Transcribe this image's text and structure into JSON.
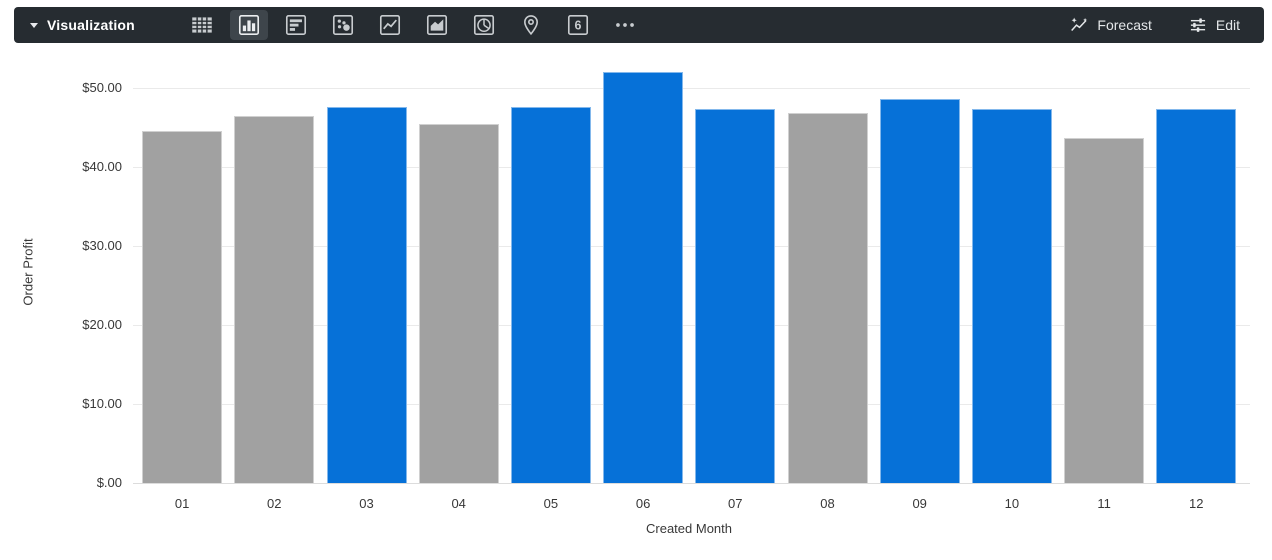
{
  "toolbar": {
    "title": "Visualization",
    "forecast_label": "Forecast",
    "edit_label": "Edit",
    "chart_types": [
      {
        "name": "table",
        "selected": false
      },
      {
        "name": "column",
        "selected": true
      },
      {
        "name": "bar",
        "selected": false
      },
      {
        "name": "scatter",
        "selected": false
      },
      {
        "name": "line",
        "selected": false
      },
      {
        "name": "area",
        "selected": false
      },
      {
        "name": "pie",
        "selected": false
      },
      {
        "name": "map",
        "selected": false
      },
      {
        "name": "single-value",
        "selected": false,
        "glyph": "6"
      },
      {
        "name": "more",
        "selected": false
      }
    ]
  },
  "chart_data": {
    "type": "bar",
    "title": "",
    "xlabel": "Created Month",
    "ylabel": "Order Profit",
    "categories": [
      "01",
      "02",
      "03",
      "04",
      "05",
      "06",
      "07",
      "08",
      "09",
      "10",
      "11",
      "12"
    ],
    "values": [
      44.5,
      46.5,
      47.6,
      45.4,
      47.6,
      52.0,
      47.3,
      46.8,
      48.6,
      47.3,
      43.7,
      47.3
    ],
    "bar_color_keys": [
      "gray",
      "gray",
      "blue",
      "gray",
      "blue",
      "blue",
      "blue",
      "gray",
      "blue",
      "blue",
      "gray",
      "blue"
    ],
    "palette": {
      "blue": "#0671D8",
      "gray": "#A1A1A1"
    },
    "y_ticks": [
      {
        "label": "$50.00",
        "value": 50
      },
      {
        "label": "$40.00",
        "value": 40
      },
      {
        "label": "$30.00",
        "value": 30
      },
      {
        "label": "$20.00",
        "value": 20
      },
      {
        "label": "$10.00",
        "value": 10
      },
      {
        "label": "$.00",
        "value": 0
      }
    ],
    "ylim": [
      0,
      53.5
    ],
    "grid": true,
    "legend": false
  }
}
